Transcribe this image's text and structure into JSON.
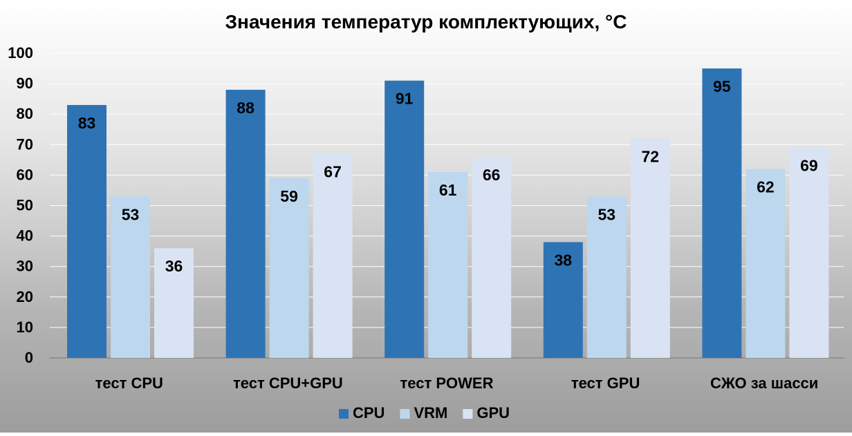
{
  "chart_data": {
    "type": "bar",
    "title": "Значения температур комплектующих, °С",
    "xlabel": "",
    "ylabel": "",
    "categories": [
      "тест CPU",
      "тест CPU+GPU",
      "тест POWER",
      "тест GPU",
      "СЖО за шасси"
    ],
    "series": [
      {
        "name": "CPU",
        "color": "#2e74b5",
        "values": [
          83,
          88,
          91,
          38,
          95
        ]
      },
      {
        "name": "VRM",
        "color": "#bdd7ee",
        "values": [
          53,
          59,
          61,
          53,
          62
        ]
      },
      {
        "name": "GPU",
        "color": "#dae3f3",
        "values": [
          36,
          67,
          66,
          72,
          69
        ]
      }
    ],
    "ylim": [
      0,
      100
    ],
    "yticks": [
      "0",
      "10",
      "20",
      "30",
      "40",
      "50",
      "60",
      "70",
      "80",
      "90",
      "100"
    ],
    "grid": true,
    "data_labels": true,
    "legend_position": "bottom"
  }
}
